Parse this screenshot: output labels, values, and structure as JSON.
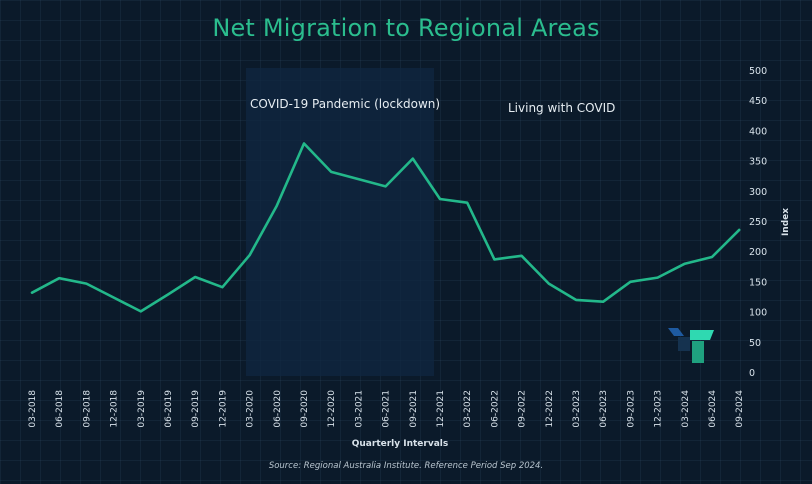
{
  "chart_data": {
    "type": "line",
    "title": "Net Migration to Regional Areas",
    "xlabel": "Quarterly Intervals",
    "ylabel": "Index",
    "yticks": [
      "500",
      "450",
      "400",
      "350",
      "300",
      "250",
      "200",
      "150",
      "100",
      "50",
      "0"
    ],
    "categories": [
      "03-2018",
      "06-2018",
      "09-2018",
      "12-2018",
      "03-2019",
      "06-2019",
      "09-2019",
      "12-2019",
      "03-2020",
      "06-2020",
      "09-2020",
      "12-2020",
      "03-2021",
      "06-2021",
      "09-2021",
      "12-2021",
      "03-2022",
      "06-2022",
      "09-2022",
      "12-2022",
      "03-2023",
      "06-2023",
      "09-2023",
      "12-2023",
      "03-2024",
      "06-2024",
      "09-2024"
    ],
    "series": [
      {
        "color": "#23b88a",
        "values": [
          133,
          157,
          148,
          125,
          102,
          130,
          159,
          142,
          195,
          277,
          380,
          333,
          321,
          309,
          355,
          288,
          282,
          188,
          194,
          148,
          121,
          118,
          151,
          158,
          181,
          192,
          237
        ]
      }
    ],
    "annotations": {
      "pandemic": "COVID-19 Pandemic (lockdown)",
      "living": "Living with COVID"
    },
    "source": "Source: Regional Australia Institute. Reference Period Sep 2024."
  }
}
